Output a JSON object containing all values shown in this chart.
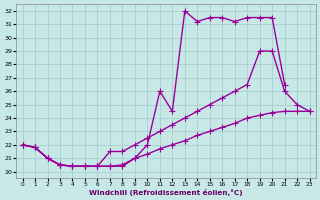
{
  "xlabel": "Windchill (Refroidissement éolien,°C)",
  "xlim": [
    -0.5,
    23.5
  ],
  "ylim": [
    19.5,
    32.5
  ],
  "xticks": [
    0,
    1,
    2,
    3,
    4,
    5,
    6,
    7,
    8,
    9,
    10,
    11,
    12,
    13,
    14,
    15,
    16,
    17,
    18,
    19,
    20,
    21,
    22,
    23
  ],
  "yticks": [
    20,
    21,
    22,
    23,
    24,
    25,
    26,
    27,
    28,
    29,
    30,
    31,
    32
  ],
  "bg_color": "#c8e8e8",
  "grid_color": "#a8cece",
  "line_color": "#990099",
  "line_width": 1.0,
  "series": [
    {
      "x": [
        0,
        1,
        2,
        3,
        4,
        5,
        6,
        7,
        8,
        9,
        10,
        11,
        12,
        13,
        14,
        15,
        16,
        17,
        18,
        19,
        20,
        21
      ],
      "y": [
        22.0,
        21.8,
        21.0,
        20.5,
        20.4,
        20.4,
        20.4,
        20.4,
        20.4,
        21.0,
        22.0,
        26.0,
        24.5,
        32.0,
        31.2,
        31.5,
        31.5,
        31.2,
        31.5,
        31.5,
        31.5,
        26.5
      ]
    },
    {
      "x": [
        0,
        1,
        2,
        3,
        4,
        5,
        6,
        7,
        8,
        9,
        10,
        11,
        12,
        13,
        14,
        15,
        16,
        17,
        18,
        19,
        20,
        21,
        22,
        23
      ],
      "y": [
        22.0,
        21.8,
        21.0,
        20.5,
        20.4,
        20.4,
        20.4,
        21.5,
        21.5,
        22.0,
        22.5,
        23.0,
        23.5,
        24.0,
        24.5,
        25.0,
        25.5,
        26.0,
        26.5,
        29.0,
        29.0,
        26.0,
        25.0,
        24.5
      ]
    },
    {
      "x": [
        0,
        1,
        2,
        3,
        4,
        5,
        6,
        7,
        8,
        9,
        10,
        11,
        12,
        13,
        14,
        15,
        16,
        17,
        18,
        19,
        20,
        21,
        22,
        23
      ],
      "y": [
        22.0,
        21.8,
        21.0,
        20.5,
        20.4,
        20.4,
        20.4,
        20.4,
        20.5,
        21.0,
        21.3,
        21.7,
        22.0,
        22.3,
        22.7,
        23.0,
        23.3,
        23.6,
        24.0,
        24.2,
        24.4,
        24.5,
        24.5,
        24.5
      ]
    }
  ]
}
